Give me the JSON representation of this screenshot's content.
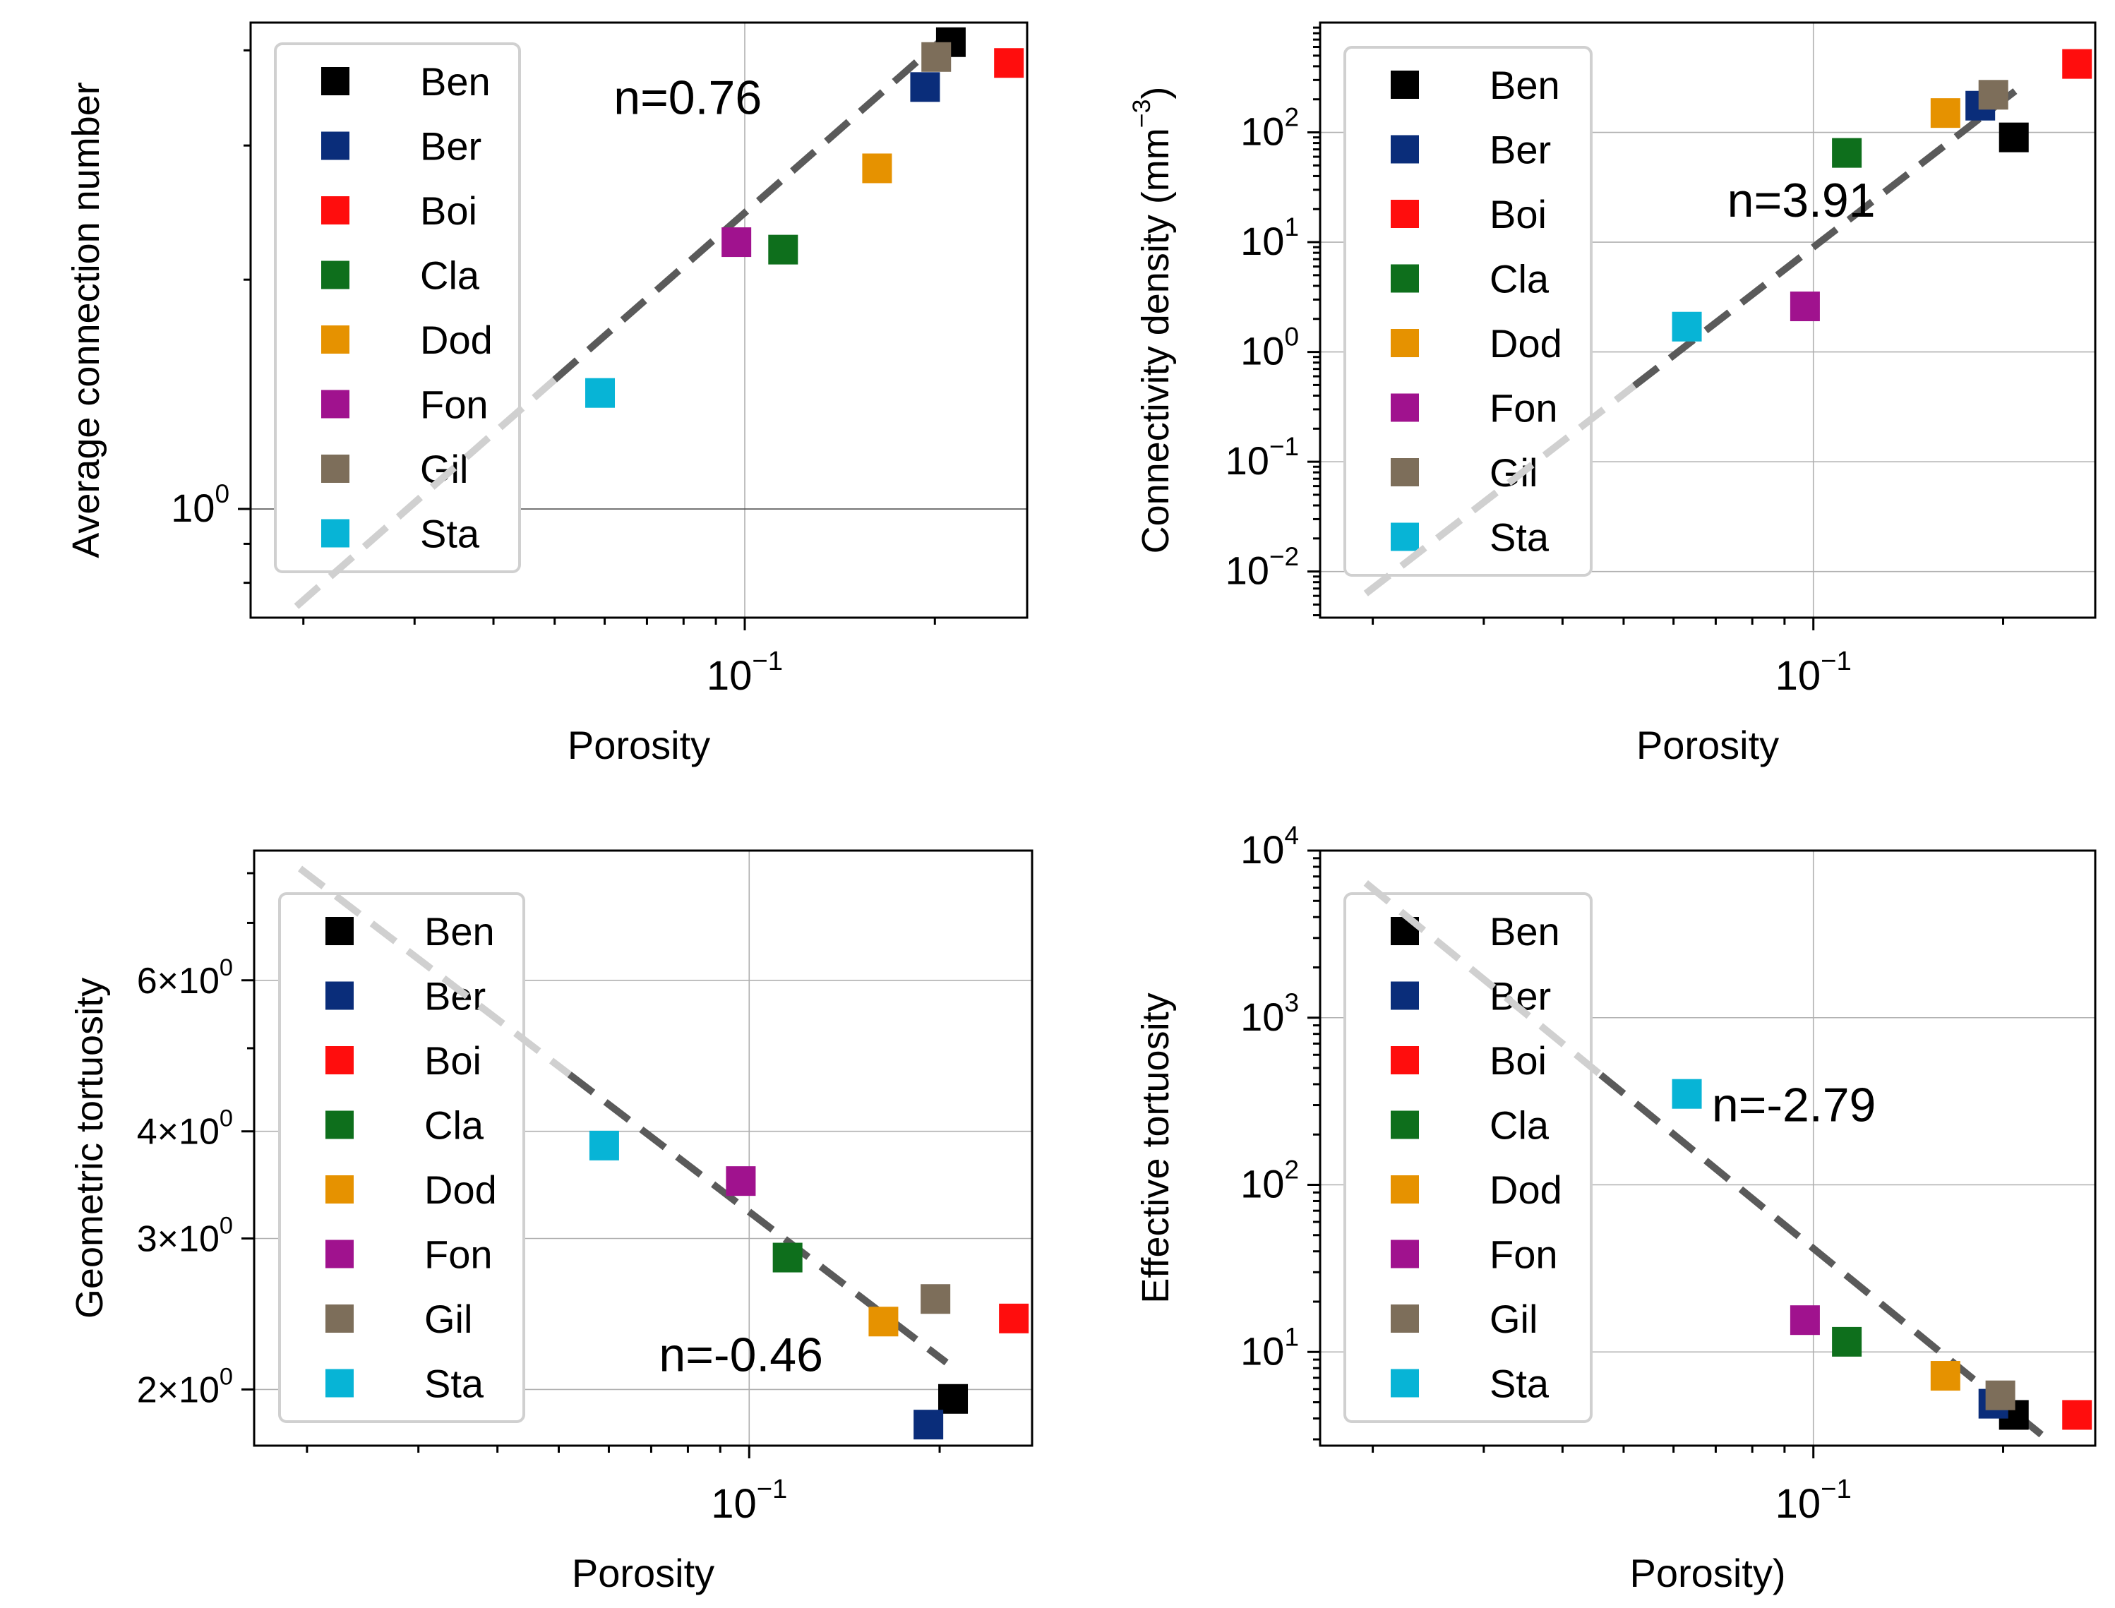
{
  "chart_data": [
    {
      "type": "scatter",
      "xlabel": "Porosity",
      "ylabel": "Average connection number",
      "x_scale": "log",
      "y_scale": "log",
      "xlim": [
        0.0165,
        0.28
      ],
      "ylim": [
        0.72,
        4.35
      ],
      "x_tick_label": {
        "value": 0.1,
        "base": "10",
        "exp": "−1"
      },
      "y_tick_labels": [
        {
          "value": 1,
          "base": "10",
          "exp": "0"
        }
      ],
      "annotation": {
        "text": "n=0.76",
        "at": [
          0.062,
          3.3
        ]
      },
      "fit_line": {
        "exponent": 0.76,
        "from": [
          0.0195,
          0.745
        ],
        "to": [
          0.21,
          4.2
        ],
        "solid_from_x": 0.05
      },
      "series": [
        {
          "name": "Ben",
          "color": "#000000",
          "x": 0.212,
          "y": 4.1
        },
        {
          "name": "Ber",
          "color": "#0a2d7a",
          "x": 0.193,
          "y": 3.58
        },
        {
          "name": "Boi",
          "color": "#ff0d0d",
          "x": 0.262,
          "y": 3.85
        },
        {
          "name": "Cla",
          "color": "#0e6f1c",
          "x": 0.115,
          "y": 2.19
        },
        {
          "name": "Dod",
          "color": "#e69200",
          "x": 0.162,
          "y": 2.8
        },
        {
          "name": "Fon",
          "color": "#a0128e",
          "x": 0.097,
          "y": 2.24
        },
        {
          "name": "Gil",
          "color": "#7d6e5a",
          "x": 0.201,
          "y": 3.92
        },
        {
          "name": "Sta",
          "color": "#07b4d6",
          "x": 0.059,
          "y": 1.42
        }
      ]
    },
    {
      "type": "scatter",
      "xlabel": "Porosity",
      "ylabel": "Connectivity density (mm",
      "ylabel_exp": "−3",
      "ylabel_close": ")",
      "x_scale": "log",
      "y_scale": "log",
      "xlim": [
        0.0165,
        0.28
      ],
      "ylim": [
        0.0038,
        1000
      ],
      "x_tick_label": {
        "value": 0.1,
        "base": "10",
        "exp": "−1"
      },
      "y_tick_labels": [
        {
          "value": 0.01,
          "base": "10",
          "exp": "−2"
        },
        {
          "value": 0.1,
          "base": "10",
          "exp": "−1"
        },
        {
          "value": 1,
          "base": "10",
          "exp": "0"
        },
        {
          "value": 10,
          "base": "10",
          "exp": "1"
        },
        {
          "value": 100,
          "base": "10",
          "exp": "2"
        }
      ],
      "annotation": {
        "text": "n=3.91",
        "at": [
          0.073,
          17
        ]
      },
      "fit_line": {
        "exponent": 3.91,
        "from": [
          0.0195,
          0.0063
        ],
        "to": [
          0.215,
          270
        ],
        "solid_from_x": 0.052
      },
      "series": [
        {
          "name": "Ben",
          "color": "#000000",
          "x": 0.208,
          "y": 90
        },
        {
          "name": "Ber",
          "color": "#0a2d7a",
          "x": 0.184,
          "y": 175
        },
        {
          "name": "Boi",
          "color": "#ff0d0d",
          "x": 0.262,
          "y": 420
        },
        {
          "name": "Cla",
          "color": "#0e6f1c",
          "x": 0.113,
          "y": 65
        },
        {
          "name": "Dod",
          "color": "#e69200",
          "x": 0.162,
          "y": 150
        },
        {
          "name": "Fon",
          "color": "#a0128e",
          "x": 0.097,
          "y": 2.6
        },
        {
          "name": "Gil",
          "color": "#7d6e5a",
          "x": 0.193,
          "y": 220
        },
        {
          "name": "Sta",
          "color": "#07b4d6",
          "x": 0.063,
          "y": 1.7
        }
      ]
    },
    {
      "type": "scatter",
      "xlabel": "Porosity",
      "ylabel": "Geometric tortuosity",
      "x_scale": "log",
      "y_scale": "log",
      "xlim": [
        0.0165,
        0.28
      ],
      "ylim": [
        1.72,
        8.5
      ],
      "x_tick_label": {
        "value": 0.1,
        "base": "10",
        "exp": "−1"
      },
      "y_tick_labels": [
        {
          "value": 2,
          "label": "2×10",
          "exp": "0"
        },
        {
          "value": 3,
          "label": "3×10",
          "exp": "0"
        },
        {
          "value": 4,
          "label": "4×10",
          "exp": "0"
        },
        {
          "value": 6,
          "label": "6×10",
          "exp": "0"
        }
      ],
      "annotation": {
        "text": "n=-0.46",
        "at": [
          0.072,
          2.1
        ]
      },
      "fit_line": {
        "exponent": -0.46,
        "from": [
          0.0195,
          8.1
        ],
        "to": [
          0.205,
          2.15
        ],
        "solid_from_x": 0.052
      },
      "series": [
        {
          "name": "Ben",
          "color": "#000000",
          "x": 0.21,
          "y": 1.95
        },
        {
          "name": "Ber",
          "color": "#0a2d7a",
          "x": 0.192,
          "y": 1.82
        },
        {
          "name": "Boi",
          "color": "#ff0d0d",
          "x": 0.262,
          "y": 2.42
        },
        {
          "name": "Cla",
          "color": "#0e6f1c",
          "x": 0.115,
          "y": 2.85
        },
        {
          "name": "Dod",
          "color": "#e69200",
          "x": 0.163,
          "y": 2.4
        },
        {
          "name": "Fon",
          "color": "#a0128e",
          "x": 0.097,
          "y": 3.5
        },
        {
          "name": "Gil",
          "color": "#7d6e5a",
          "x": 0.197,
          "y": 2.55
        },
        {
          "name": "Sta",
          "color": "#07b4d6",
          "x": 0.059,
          "y": 3.85
        }
      ]
    },
    {
      "type": "scatter",
      "xlabel": "Porosity)",
      "ylabel": "Effective tortuosity",
      "x_scale": "log",
      "y_scale": "log",
      "xlim": [
        0.0165,
        0.28
      ],
      "ylim": [
        2.75,
        10000
      ],
      "x_tick_label": {
        "value": 0.1,
        "base": "10",
        "exp": "−1"
      },
      "y_tick_labels": [
        {
          "value": 10,
          "base": "10",
          "exp": "1"
        },
        {
          "value": 100,
          "base": "10",
          "exp": "2"
        },
        {
          "value": 1000,
          "base": "10",
          "exp": "3"
        },
        {
          "value": 10000,
          "base": "10",
          "exp": "4"
        }
      ],
      "annotation": {
        "text": "n=-2.79",
        "at": [
          0.069,
          240
        ]
      },
      "fit_line": {
        "exponent": -2.79,
        "from": [
          0.0195,
          6400
        ],
        "to": [
          0.23,
          3.2
        ],
        "solid_from_x": 0.046
      },
      "series": [
        {
          "name": "Ben",
          "color": "#000000",
          "x": 0.208,
          "y": 4.2
        },
        {
          "name": "Ber",
          "color": "#0a2d7a",
          "x": 0.193,
          "y": 4.9
        },
        {
          "name": "Boi",
          "color": "#ff0d0d",
          "x": 0.262,
          "y": 4.2
        },
        {
          "name": "Cla",
          "color": "#0e6f1c",
          "x": 0.113,
          "y": 11.5
        },
        {
          "name": "Dod",
          "color": "#e69200",
          "x": 0.162,
          "y": 7.2
        },
        {
          "name": "Fon",
          "color": "#a0128e",
          "x": 0.097,
          "y": 15.5
        },
        {
          "name": "Gil",
          "color": "#7d6e5a",
          "x": 0.198,
          "y": 5.5
        },
        {
          "name": "Sta",
          "color": "#07b4d6",
          "x": 0.063,
          "y": 350
        }
      ]
    }
  ]
}
